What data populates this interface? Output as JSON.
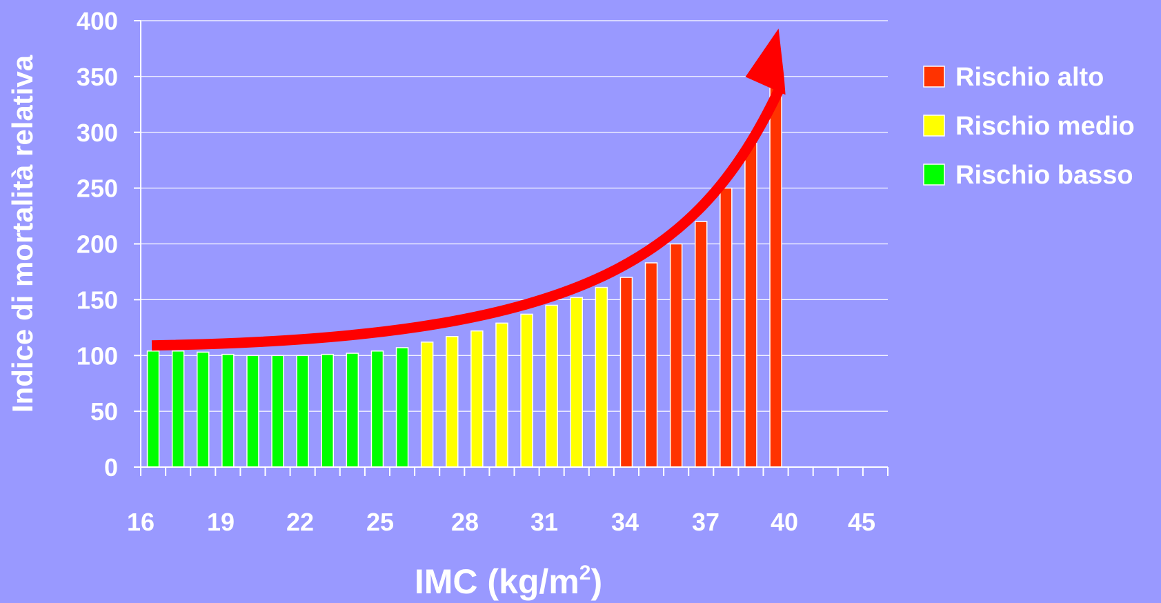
{
  "chart_data": {
    "type": "bar",
    "title": "",
    "ylabel": "Indice di mortalità relativa",
    "xlabel_main": "IMC (kg/m",
    "xlabel_sup": "2",
    "xlabel_end": ")",
    "ylim": [
      0,
      400
    ],
    "yticks": [
      "0",
      "50",
      "100",
      "150",
      "200",
      "250",
      "300",
      "350",
      "400"
    ],
    "xtick_labels": [
      "16",
      "19",
      "22",
      "25",
      "28",
      "31",
      "34",
      "37",
      "40",
      "45"
    ],
    "grid": true,
    "values": [
      104,
      104,
      103,
      101,
      100,
      100,
      100,
      101,
      102,
      104,
      107,
      112,
      117,
      122,
      129,
      137,
      145,
      152,
      161,
      170,
      183,
      200,
      220,
      250,
      290,
      350
    ],
    "risk": [
      "basso",
      "basso",
      "basso",
      "basso",
      "basso",
      "basso",
      "basso",
      "basso",
      "basso",
      "basso",
      "basso",
      "medio",
      "medio",
      "medio",
      "medio",
      "medio",
      "medio",
      "medio",
      "medio",
      "alto",
      "alto",
      "alto",
      "alto",
      "alto",
      "alto",
      "alto"
    ],
    "colors": {
      "alto": "#ff3300",
      "medio": "#ffff00",
      "basso": "#00ff00",
      "arrow": "#ff0000",
      "background": "#9999ff"
    },
    "legend_position": "right",
    "legend": [
      {
        "key": "alto",
        "label": "Rischio alto"
      },
      {
        "key": "medio",
        "label": "Rischio medio"
      },
      {
        "key": "basso",
        "label": "Rischio basso"
      }
    ],
    "trend_arrow": {
      "from": [
        0,
        109
      ],
      "to": [
        25.5,
        393
      ]
    }
  }
}
